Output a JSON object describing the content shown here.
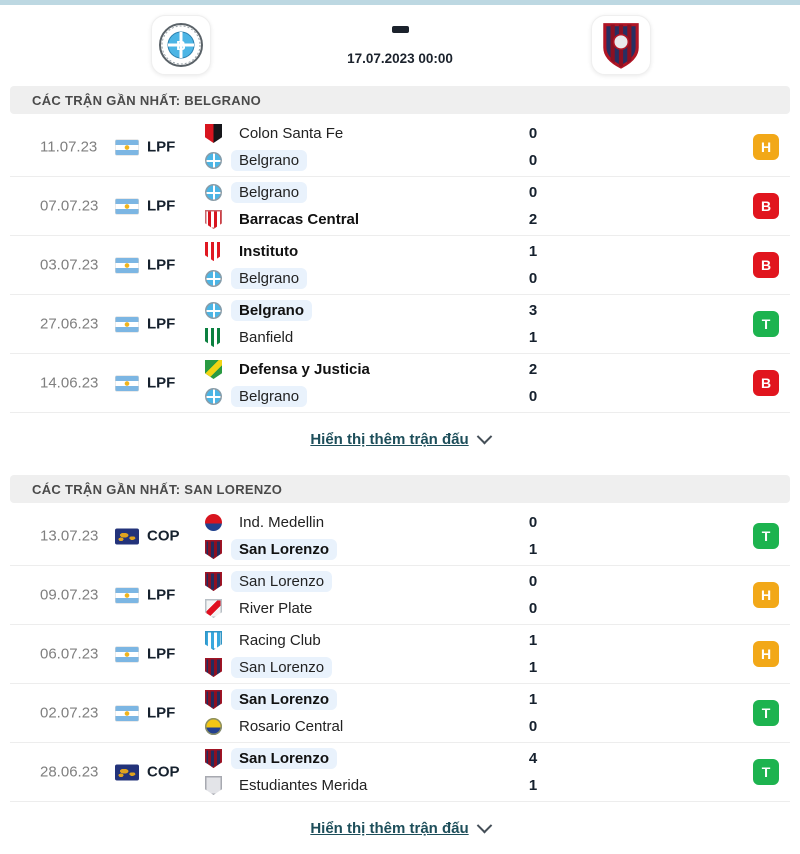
{
  "header": {
    "separator": "-",
    "datetime": "17.07.2023 00:00",
    "home_team": "Belgrano",
    "away_team": "San Lorenzo"
  },
  "colors": {
    "top_accent": "#bdd8e2",
    "result_win": "#1db34f",
    "result_loss": "#e1151e",
    "result_draw": "#f2a818",
    "link": "#1d4e5a",
    "team_highlight": "#e9f2fc",
    "section_bar_bg": "#efefef"
  },
  "logos": {
    "colon": {
      "shape": "shield",
      "pattern": "split-v",
      "colors": [
        "#d8151f",
        "#16161a"
      ]
    },
    "belgrano": {
      "shape": "circle",
      "pattern": "solid",
      "colors": [
        "#4cb5e5"
      ],
      "cross": "#ffffff",
      "ring": "#8d9aa3"
    },
    "barracas": {
      "shape": "shield",
      "pattern": "stripes",
      "colors": [
        "#ffffff",
        "#d8151f"
      ],
      "ring": "#c9666b"
    },
    "instituto": {
      "shape": "shield",
      "pattern": "stripes",
      "colors": [
        "#e01822",
        "#ffffff"
      ]
    },
    "banfield": {
      "shape": "shield",
      "pattern": "stripes",
      "colors": [
        "#0c8040",
        "#ffffff"
      ]
    },
    "defensa": {
      "shape": "shield",
      "pattern": "solid",
      "colors": [
        "#2a9a42"
      ],
      "band": "#f2d414"
    },
    "medellin": {
      "shape": "circle",
      "pattern": "split-h",
      "colors": [
        "#d8151f",
        "#20418e"
      ]
    },
    "sanlorenzo": {
      "shape": "shield",
      "pattern": "stripes",
      "colors": [
        "#232c5e",
        "#8c1022"
      ],
      "ring": "#a01525"
    },
    "river": {
      "shape": "shield",
      "pattern": "solid",
      "colors": [
        "#f4f4f4"
      ],
      "band": "#e01020",
      "ring": "#b9c0c6"
    },
    "racing": {
      "shape": "shield",
      "pattern": "stripes",
      "colors": [
        "#38a8de",
        "#ffffff"
      ],
      "ring": "#2f95c6"
    },
    "rosario": {
      "shape": "circle",
      "pattern": "split-h",
      "colors": [
        "#f3c614",
        "#23408f"
      ],
      "ring": "#8a8f66"
    },
    "estudiantes": {
      "shape": "shield",
      "pattern": "solid",
      "colors": [
        "#e3e4e8"
      ],
      "ring": "#a7a9b0"
    }
  },
  "sections": [
    {
      "title": "CÁC TRẬN GẦN NHẤT: BELGRANO",
      "show_more_label": "Hiển thị thêm trận đấu",
      "matches": [
        {
          "date": "11.07.23",
          "competition": {
            "label": "LPF",
            "flag": "argentina"
          },
          "result": "H",
          "teams": [
            {
              "name": "Colon Santa Fe",
              "score": "0",
              "bold": false,
              "highlight": false,
              "logo": "colon"
            },
            {
              "name": "Belgrano",
              "score": "0",
              "bold": false,
              "highlight": true,
              "logo": "belgrano"
            }
          ]
        },
        {
          "date": "07.07.23",
          "competition": {
            "label": "LPF",
            "flag": "argentina"
          },
          "result": "B",
          "teams": [
            {
              "name": "Belgrano",
              "score": "0",
              "bold": false,
              "highlight": true,
              "logo": "belgrano"
            },
            {
              "name": "Barracas Central",
              "score": "2",
              "bold": true,
              "highlight": false,
              "logo": "barracas"
            }
          ]
        },
        {
          "date": "03.07.23",
          "competition": {
            "label": "LPF",
            "flag": "argentina"
          },
          "result": "B",
          "teams": [
            {
              "name": "Instituto",
              "score": "1",
              "bold": true,
              "highlight": false,
              "logo": "instituto"
            },
            {
              "name": "Belgrano",
              "score": "0",
              "bold": false,
              "highlight": true,
              "logo": "belgrano"
            }
          ]
        },
        {
          "date": "27.06.23",
          "competition": {
            "label": "LPF",
            "flag": "argentina"
          },
          "result": "T",
          "teams": [
            {
              "name": "Belgrano",
              "score": "3",
              "bold": true,
              "highlight": true,
              "logo": "belgrano"
            },
            {
              "name": "Banfield",
              "score": "1",
              "bold": false,
              "highlight": false,
              "logo": "banfield"
            }
          ]
        },
        {
          "date": "14.06.23",
          "competition": {
            "label": "LPF",
            "flag": "argentina"
          },
          "result": "B",
          "teams": [
            {
              "name": "Defensa y Justicia",
              "score": "2",
              "bold": true,
              "highlight": false,
              "logo": "defensa"
            },
            {
              "name": "Belgrano",
              "score": "0",
              "bold": false,
              "highlight": true,
              "logo": "belgrano"
            }
          ]
        }
      ]
    },
    {
      "title": "CÁC TRẬN GẦN NHẤT: SAN LORENZO",
      "show_more_label": "Hiển thị thêm trận đấu",
      "matches": [
        {
          "date": "13.07.23",
          "competition": {
            "label": "COP",
            "flag": "world"
          },
          "result": "T",
          "teams": [
            {
              "name": "Ind. Medellin",
              "score": "0",
              "bold": false,
              "highlight": false,
              "logo": "medellin"
            },
            {
              "name": "San Lorenzo",
              "score": "1",
              "bold": true,
              "highlight": true,
              "logo": "sanlorenzo"
            }
          ]
        },
        {
          "date": "09.07.23",
          "competition": {
            "label": "LPF",
            "flag": "argentina"
          },
          "result": "H",
          "teams": [
            {
              "name": "San Lorenzo",
              "score": "0",
              "bold": false,
              "highlight": true,
              "logo": "sanlorenzo"
            },
            {
              "name": "River Plate",
              "score": "0",
              "bold": false,
              "highlight": false,
              "logo": "river"
            }
          ]
        },
        {
          "date": "06.07.23",
          "competition": {
            "label": "LPF",
            "flag": "argentina"
          },
          "result": "H",
          "teams": [
            {
              "name": "Racing Club",
              "score": "1",
              "bold": false,
              "highlight": false,
              "logo": "racing"
            },
            {
              "name": "San Lorenzo",
              "score": "1",
              "bold": false,
              "highlight": true,
              "logo": "sanlorenzo"
            }
          ]
        },
        {
          "date": "02.07.23",
          "competition": {
            "label": "LPF",
            "flag": "argentina"
          },
          "result": "T",
          "teams": [
            {
              "name": "San Lorenzo",
              "score": "1",
              "bold": true,
              "highlight": true,
              "logo": "sanlorenzo"
            },
            {
              "name": "Rosario Central",
              "score": "0",
              "bold": false,
              "highlight": false,
              "logo": "rosario"
            }
          ]
        },
        {
          "date": "28.06.23",
          "competition": {
            "label": "COP",
            "flag": "world"
          },
          "result": "T",
          "teams": [
            {
              "name": "San Lorenzo",
              "score": "4",
              "bold": true,
              "highlight": true,
              "logo": "sanlorenzo"
            },
            {
              "name": "Estudiantes Merida",
              "score": "1",
              "bold": false,
              "highlight": false,
              "logo": "estudiantes"
            }
          ]
        }
      ]
    }
  ]
}
